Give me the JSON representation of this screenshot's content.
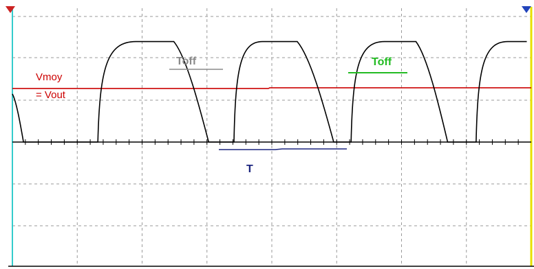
{
  "chart_data": {
    "type": "line",
    "title": "",
    "xlabel": "",
    "ylabel": "",
    "grid": true,
    "series": [
      {
        "name": "",
        "color": "#000000",
        "shape": "square-wave-with-exponential-edges",
        "points": [
          [
            0.0,
            1.15
          ],
          [
            0.7,
            0.0
          ],
          [
            5.4,
            0.0
          ],
          [
            7.8,
            2.4
          ],
          [
            10.2,
            2.4
          ],
          [
            12.4,
            0.0
          ],
          [
            14.0,
            0.0
          ],
          [
            15.8,
            2.4
          ],
          [
            18.0,
            2.4
          ],
          [
            20.3,
            0.0
          ],
          [
            21.4,
            0.0
          ],
          [
            23.5,
            2.4
          ],
          [
            25.5,
            2.4
          ],
          [
            27.5,
            0.0
          ],
          [
            29.3,
            0.0
          ],
          [
            31.3,
            2.4
          ],
          [
            32.5,
            2.4
          ]
        ]
      }
    ],
    "markers": {
      "trigger_left_color": "#cc2222",
      "trigger_right_color": "#2244bb",
      "left_axis_color": "#33cccc",
      "right_edge_color": "#e8e000"
    },
    "annotations": {
      "vmoy_line1": "Vmoy",
      "vmoy_line2": "= Vout",
      "vmoy_color": "#cc0000",
      "vmoy_level": 1.28,
      "toff_gray": "Toff",
      "toff_gray_color": "#8a8a8a",
      "toff_green": "Toff",
      "toff_green_color": "#22bb22",
      "period": "T",
      "period_color": "#1a237e"
    }
  }
}
